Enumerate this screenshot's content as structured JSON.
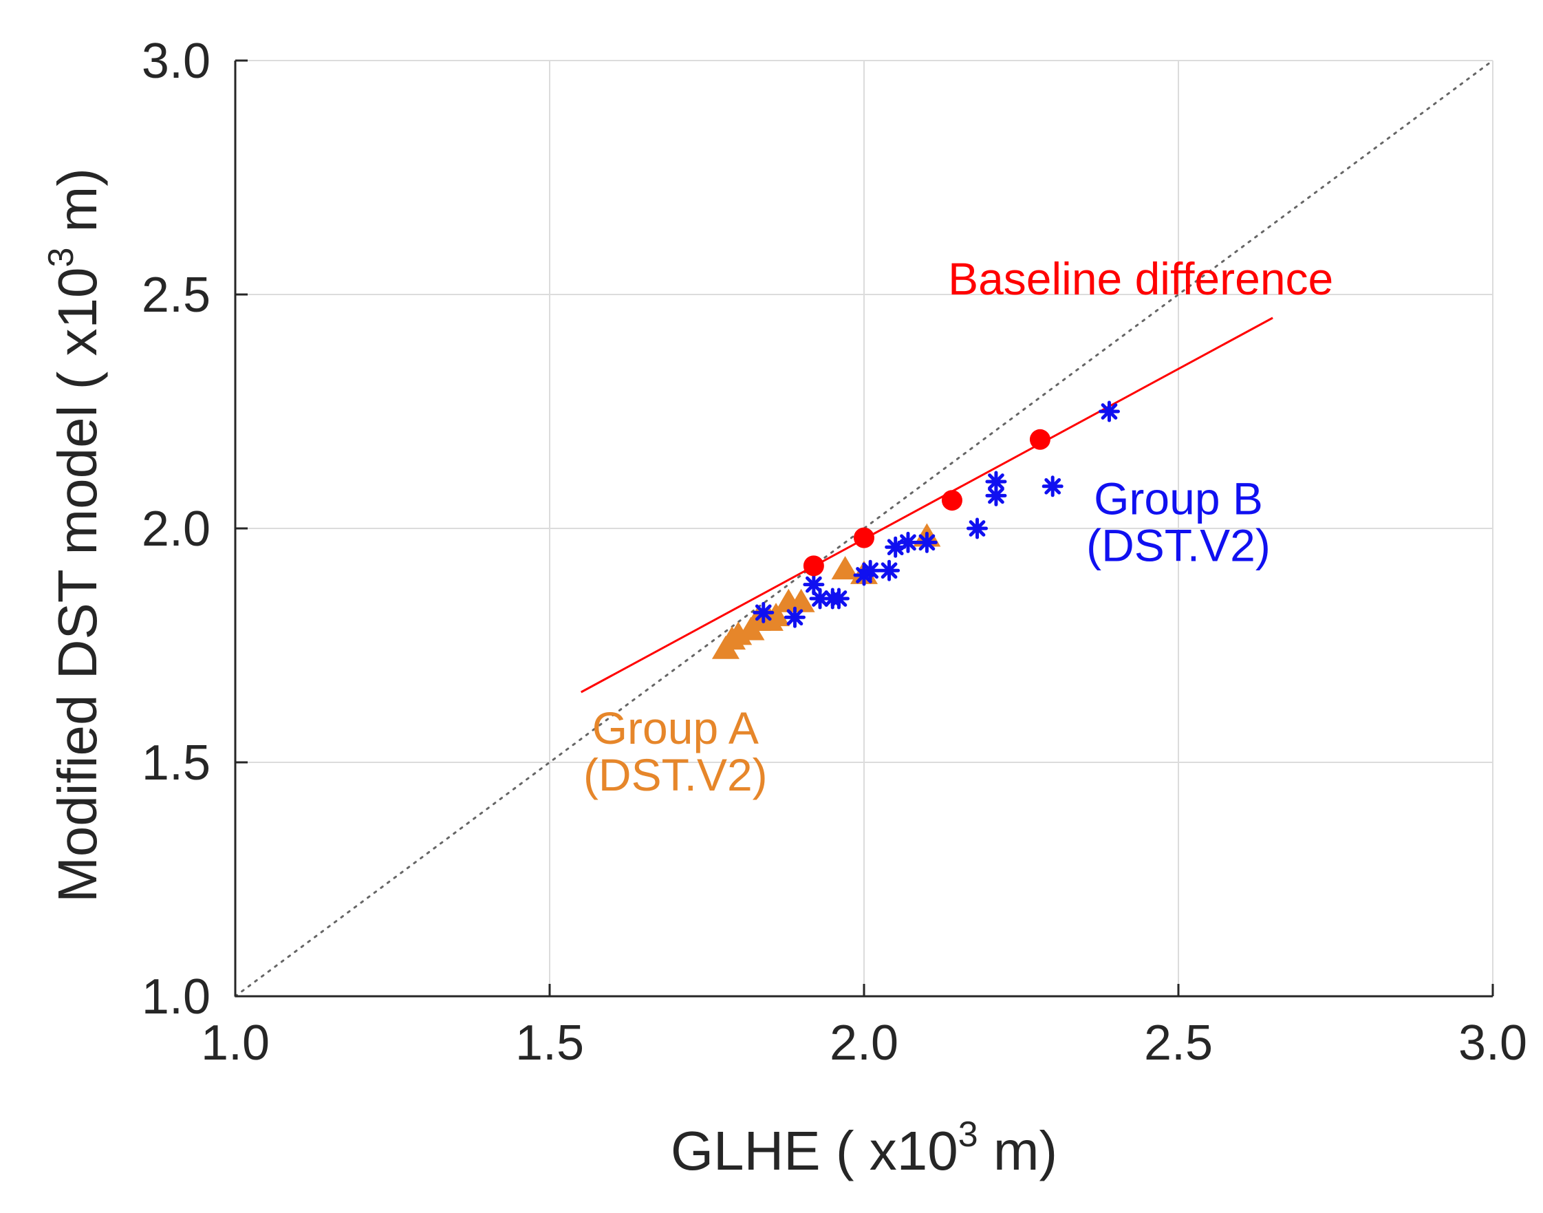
{
  "chart_data": {
    "type": "scatter",
    "title": "",
    "xlabel": {
      "prefix": "GLHE ( x10",
      "sup": "3",
      "suffix": " m)"
    },
    "ylabel": {
      "prefix": "Modified DST model ( x10",
      "sup": "3",
      "suffix": " m)"
    },
    "xlim": [
      1.0,
      3.0
    ],
    "ylim": [
      1.0,
      3.0
    ],
    "xticks": [
      "1.0",
      "1.5",
      "2.0",
      "2.5",
      "3.0"
    ],
    "yticks": [
      "1.0",
      "1.5",
      "2.0",
      "2.5",
      "3.0"
    ],
    "grid": true,
    "reference_line": {
      "name": "y = x",
      "style": "dotted",
      "color": "#666666",
      "from": [
        1.0,
        1.0
      ],
      "to": [
        3.0,
        3.0
      ]
    },
    "series": [
      {
        "name": "Group A (DST.V2)",
        "marker": "triangle",
        "color": "#E6862A",
        "points": [
          [
            1.78,
            1.74
          ],
          [
            1.79,
            1.76
          ],
          [
            1.8,
            1.77
          ],
          [
            1.82,
            1.78
          ],
          [
            1.83,
            1.8
          ],
          [
            1.85,
            1.8
          ],
          [
            1.86,
            1.81
          ],
          [
            1.88,
            1.84
          ],
          [
            1.9,
            1.84
          ],
          [
            1.97,
            1.91
          ],
          [
            2.0,
            1.9
          ],
          [
            2.1,
            1.98
          ]
        ]
      },
      {
        "name": "Group B (DST.V2)",
        "marker": "asterisk",
        "color": "#1010F0",
        "points": [
          [
            1.84,
            1.82
          ],
          [
            1.89,
            1.81
          ],
          [
            1.92,
            1.88
          ],
          [
            1.93,
            1.85
          ],
          [
            1.95,
            1.85
          ],
          [
            1.96,
            1.85
          ],
          [
            2.0,
            1.9
          ],
          [
            2.01,
            1.91
          ],
          [
            2.04,
            1.91
          ],
          [
            2.05,
            1.96
          ],
          [
            2.07,
            1.97
          ],
          [
            2.1,
            1.97
          ],
          [
            2.18,
            2.0
          ],
          [
            2.21,
            2.07
          ],
          [
            2.21,
            2.1
          ],
          [
            2.3,
            2.09
          ],
          [
            2.39,
            2.25
          ]
        ]
      },
      {
        "name": "Baseline difference",
        "marker": "circle",
        "color": "#FF0000",
        "points": [
          [
            1.92,
            1.92
          ],
          [
            2.0,
            1.98
          ],
          [
            2.14,
            2.06
          ],
          [
            2.28,
            2.19
          ]
        ],
        "fit_line": {
          "from": [
            1.55,
            1.65
          ],
          "to": [
            2.65,
            2.45
          ]
        }
      }
    ],
    "annotations": [
      {
        "id": "baseline",
        "text": "Baseline difference",
        "color": "#FF0000",
        "x": 2.44,
        "y": 2.5,
        "anchor": "middle"
      },
      {
        "id": "group_b_l1",
        "text": "Group B",
        "color": "#1010F0",
        "x": 2.5,
        "y": 2.03,
        "anchor": "middle"
      },
      {
        "id": "group_b_l2",
        "text": "(DST.V2)",
        "color": "#1010F0",
        "x": 2.5,
        "y": 1.93,
        "anchor": "middle"
      },
      {
        "id": "group_a_l1",
        "text": "Group A",
        "color": "#E6862A",
        "x": 1.7,
        "y": 1.54,
        "anchor": "middle"
      },
      {
        "id": "group_a_l2",
        "text": "(DST.V2)",
        "color": "#E6862A",
        "x": 1.7,
        "y": 1.44,
        "anchor": "middle"
      }
    ]
  }
}
